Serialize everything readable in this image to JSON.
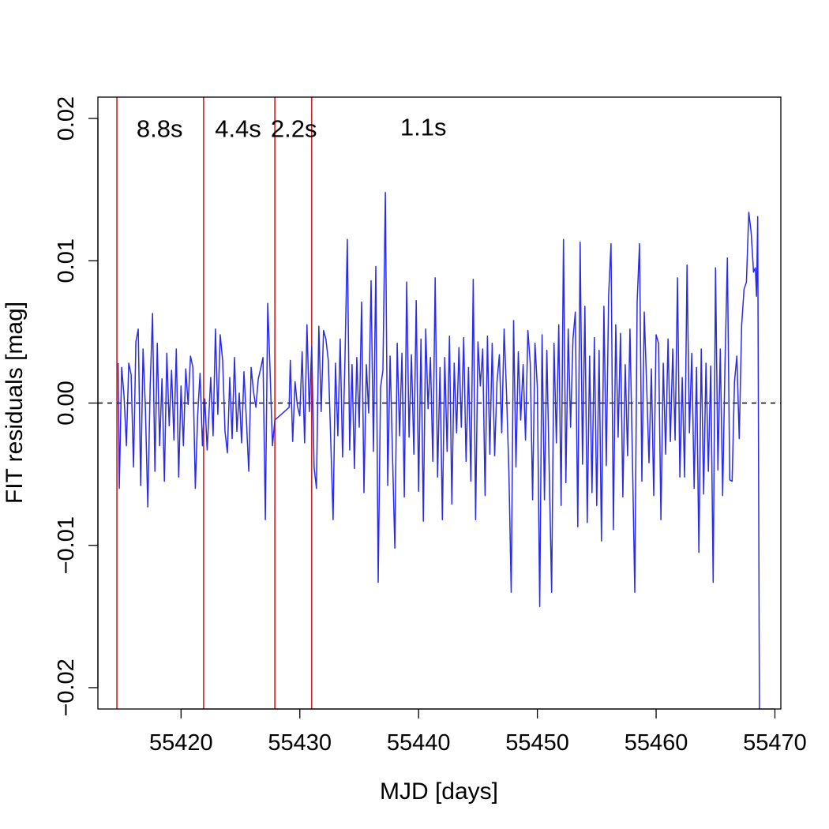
{
  "chart_data": {
    "type": "line",
    "title": "",
    "xlabel": "MJD [days]",
    "ylabel": "FIT residuals [mag]",
    "xlim": [
      55413,
      55470.5
    ],
    "ylim": [
      -0.0215,
      0.0215
    ],
    "x_ticks": [
      55420,
      55430,
      55440,
      55450,
      55460,
      55470
    ],
    "x_tick_labels": [
      "55420",
      "55430",
      "55440",
      "55450",
      "55460",
      "55470"
    ],
    "y_ticks": [
      -0.02,
      -0.01,
      0.0,
      0.01,
      0.02
    ],
    "y_tick_labels": [
      "−0.02",
      "−0.01",
      "0.00",
      "0.01",
      "0.02"
    ],
    "reference_line": {
      "y": 0.0,
      "style": "dashed",
      "color": "#000000"
    },
    "vertical_lines": {
      "color": "#cc2222",
      "x": [
        55414.6,
        55421.9,
        55427.9,
        55431.0
      ]
    },
    "segment_labels": [
      {
        "text": "8.8s",
        "x": 55418.2,
        "y": 0.0187
      },
      {
        "text": "4.4s",
        "x": 55424.8,
        "y": 0.0187
      },
      {
        "text": "2.2s",
        "x": 55429.5,
        "y": 0.0187
      },
      {
        "text": "1.1s",
        "x": 55440.4,
        "y": 0.0188
      }
    ],
    "grid": false,
    "series": [
      {
        "color": "#2a2ae8",
        "points": [
          [
            55414.7,
            0.0028
          ],
          [
            55414.8,
            -0.006
          ],
          [
            55415.0,
            0.0025
          ],
          [
            55415.2,
            0.0005
          ],
          [
            55415.4,
            -0.003
          ],
          [
            55415.6,
            0.0028
          ],
          [
            55415.8,
            0.002
          ],
          [
            55416.0,
            -0.0045
          ],
          [
            55416.2,
            0.0043
          ],
          [
            55416.4,
            0.0052
          ],
          [
            55416.6,
            -0.0058
          ],
          [
            55416.8,
            0.0038
          ],
          [
            55417.0,
            -0.0004
          ],
          [
            55417.2,
            -0.0073
          ],
          [
            55417.4,
            0.0012
          ],
          [
            55417.6,
            0.0063
          ],
          [
            55417.8,
            -0.0048
          ],
          [
            55418.0,
            0.0042
          ],
          [
            55418.2,
            -0.003
          ],
          [
            55418.4,
            0.0017
          ],
          [
            55418.6,
            -0.0055
          ],
          [
            55418.8,
            0.0035
          ],
          [
            55419.0,
            -0.0016
          ],
          [
            55419.2,
            0.0023
          ],
          [
            55419.4,
            -0.0026
          ],
          [
            55419.6,
            0.0038
          ],
          [
            55419.8,
            -0.0052
          ],
          [
            55420.0,
            0.0012
          ],
          [
            55420.2,
            -0.003
          ],
          [
            55420.4,
            0.0024
          ],
          [
            55420.6,
            -0.0001
          ],
          [
            55420.8,
            0.0033
          ],
          [
            55421.0,
            0.0025
          ],
          [
            55421.2,
            -0.006
          ],
          [
            55421.4,
            -0.0008
          ],
          [
            55421.6,
            0.0021
          ],
          [
            55421.8,
            -0.003
          ],
          [
            55422.0,
            0.0003
          ],
          [
            55422.2,
            -0.0033
          ],
          [
            55422.5,
            0.0018
          ],
          [
            55422.7,
            -0.0023
          ],
          [
            55422.9,
            0.0052
          ],
          [
            55423.1,
            -0.0008
          ],
          [
            55423.3,
            0.0048
          ],
          [
            55423.5,
            0.003
          ],
          [
            55423.7,
            -0.002
          ],
          [
            55423.9,
            -0.0035
          ],
          [
            55424.1,
            0.0018
          ],
          [
            55424.3,
            -0.0025
          ],
          [
            55424.5,
            0.0032
          ],
          [
            55424.7,
            -0.002
          ],
          [
            55424.9,
            0.0007
          ],
          [
            55425.1,
            -0.0028
          ],
          [
            55425.3,
            0.0022
          ],
          [
            55425.5,
            -0.0011
          ],
          [
            55425.7,
            -0.0048
          ],
          [
            55425.9,
            0.0025
          ],
          [
            55426.1,
            0.0008
          ],
          [
            55426.3,
            -0.0003
          ],
          [
            55426.5,
            0.0017
          ],
          [
            55426.7,
            0.0024
          ],
          [
            55426.9,
            0.0032
          ],
          [
            55427.1,
            -0.0082
          ],
          [
            55427.3,
            0.007
          ],
          [
            55427.5,
            0.0022
          ],
          [
            55427.7,
            -0.003
          ],
          [
            55427.9,
            -0.0012
          ],
          [
            55429.1,
            -0.0003
          ],
          [
            55429.2,
            0.003
          ],
          [
            55429.4,
            -0.0027
          ],
          [
            55429.6,
            0.0015
          ],
          [
            55429.8,
            -0.0002
          ],
          [
            55430.0,
            -0.0009
          ],
          [
            55430.2,
            0.0036
          ],
          [
            55430.4,
            -0.0028
          ],
          [
            55430.6,
            0.0055
          ],
          [
            55430.8,
            -0.0006
          ],
          [
            55431.0,
            0.004
          ],
          [
            55431.2,
            -0.0045
          ],
          [
            55431.4,
            -0.006
          ],
          [
            55431.6,
            0.0054
          ],
          [
            55431.8,
            -0.0006
          ],
          [
            55432.0,
            0.0051
          ],
          [
            55432.2,
            0.0045
          ],
          [
            55432.4,
            0.003
          ],
          [
            55432.6,
            -0.0026
          ],
          [
            55432.8,
            -0.0082
          ],
          [
            55433.0,
            0.0028
          ],
          [
            55433.2,
            -0.0023
          ],
          [
            55433.4,
            0.0045
          ],
          [
            55433.6,
            -0.0038
          ],
          [
            55433.8,
            0.003
          ],
          [
            55434.0,
            0.0115
          ],
          [
            55434.2,
            -0.0033
          ],
          [
            55434.4,
            0.0027
          ],
          [
            55434.6,
            -0.0046
          ],
          [
            55434.8,
            0.0032
          ],
          [
            55435.0,
            -0.0017
          ],
          [
            55435.2,
            0.0071
          ],
          [
            55435.4,
            -0.0063
          ],
          [
            55435.6,
            0.0027
          ],
          [
            55435.8,
            -0.0007
          ],
          [
            55436.0,
            0.0086
          ],
          [
            55436.2,
            -0.0034
          ],
          [
            55436.4,
            0.0096
          ],
          [
            55436.6,
            -0.0126
          ],
          [
            55436.8,
            0.0011
          ],
          [
            55437.0,
            0.0023
          ],
          [
            55437.2,
            0.0148
          ],
          [
            55437.4,
            -0.0058
          ],
          [
            55437.6,
            0.0033
          ],
          [
            55437.8,
            -0.0036
          ],
          [
            55438.0,
            -0.0102
          ],
          [
            55438.2,
            0.0042
          ],
          [
            55438.4,
            -0.0023
          ],
          [
            55438.6,
            0.0035
          ],
          [
            55438.8,
            -0.0066
          ],
          [
            55439.0,
            0.0085
          ],
          [
            55439.2,
            -0.0024
          ],
          [
            55439.4,
            0.0034
          ],
          [
            55439.6,
            -0.0036
          ],
          [
            55439.8,
            0.0072
          ],
          [
            55440.0,
            -0.0062
          ],
          [
            55440.2,
            0.0045
          ],
          [
            55440.4,
            -0.0083
          ],
          [
            55440.6,
            0.0052
          ],
          [
            55440.8,
            -0.0004
          ],
          [
            55441.0,
            0.0032
          ],
          [
            55441.2,
            -0.0041
          ],
          [
            55441.4,
            0.0088
          ],
          [
            55441.6,
            -0.0052
          ],
          [
            55441.8,
            0.0025
          ],
          [
            55442.0,
            -0.0082
          ],
          [
            55442.2,
            0.0032
          ],
          [
            55442.4,
            -0.0034
          ],
          [
            55442.6,
            0.0047
          ],
          [
            55442.8,
            -0.0071
          ],
          [
            55443.0,
            0.0028
          ],
          [
            55443.2,
            -0.0021
          ],
          [
            55443.4,
            0.0039
          ],
          [
            55443.6,
            -0.0017
          ],
          [
            55443.8,
            0.0046
          ],
          [
            55444.0,
            -0.0041
          ],
          [
            55444.2,
            0.0025
          ],
          [
            55444.4,
            -0.0055
          ],
          [
            55444.6,
            0.0087
          ],
          [
            55444.8,
            -0.0082
          ],
          [
            55445.0,
            0.0043
          ],
          [
            55445.2,
            0.0012
          ],
          [
            55445.4,
            0.0038
          ],
          [
            55445.6,
            -0.0065
          ],
          [
            55445.8,
            0.0047
          ],
          [
            55446.0,
            -0.0036
          ],
          [
            55446.2,
            0.0042
          ],
          [
            55446.4,
            -0.0037
          ],
          [
            55446.6,
            0.0015
          ],
          [
            55446.8,
            0.0034
          ],
          [
            55447.0,
            -0.0021
          ],
          [
            55447.2,
            0.0052
          ],
          [
            55447.4,
            0.0008
          ],
          [
            55447.6,
            -0.0047
          ],
          [
            55447.8,
            -0.0133
          ],
          [
            55448.0,
            0.0058
          ],
          [
            55448.2,
            -0.0045
          ],
          [
            55448.4,
            0.0036
          ],
          [
            55448.6,
            -0.0012
          ],
          [
            55448.8,
            0.0027
          ],
          [
            55449.0,
            -0.0026
          ],
          [
            55449.2,
            0.0051
          ],
          [
            55449.4,
            0.0028
          ],
          [
            55449.6,
            -0.0068
          ],
          [
            55449.8,
            0.0042
          ],
          [
            55450.0,
            0.0011
          ],
          [
            55450.2,
            -0.0143
          ],
          [
            55450.4,
            0.0048
          ],
          [
            55450.6,
            -0.0068
          ],
          [
            55450.8,
            0.0037
          ],
          [
            55451.0,
            -0.0049
          ],
          [
            55451.2,
            -0.0133
          ],
          [
            55451.4,
            0.0042
          ],
          [
            55451.6,
            -0.0028
          ],
          [
            55451.8,
            0.0055
          ],
          [
            55452.0,
            -0.0072
          ],
          [
            55452.2,
            0.0115
          ],
          [
            55452.4,
            -0.0056
          ],
          [
            55452.6,
            0.0052
          ],
          [
            55452.8,
            -0.0017
          ],
          [
            55453.0,
            0.0045
          ],
          [
            55453.2,
            0.0064
          ],
          [
            55453.4,
            -0.0087
          ],
          [
            55453.6,
            0.0113
          ],
          [
            55453.8,
            -0.0043
          ],
          [
            55454.0,
            0.0068
          ],
          [
            55454.2,
            -0.0084
          ],
          [
            55454.4,
            0.0033
          ],
          [
            55454.6,
            -0.0063
          ],
          [
            55454.8,
            0.0046
          ],
          [
            55455.0,
            -0.0072
          ],
          [
            55455.2,
            0.0037
          ],
          [
            55455.4,
            -0.0097
          ],
          [
            55455.6,
            0.0068
          ],
          [
            55455.8,
            -0.0044
          ],
          [
            55456.0,
            0.0076
          ],
          [
            55456.2,
            0.0112
          ],
          [
            55456.4,
            -0.0089
          ],
          [
            55456.6,
            0.0055
          ],
          [
            55456.8,
            -0.0024
          ],
          [
            55457.0,
            0.0049
          ],
          [
            55457.2,
            -0.0066
          ],
          [
            55457.4,
            0.0027
          ],
          [
            55457.6,
            -0.0037
          ],
          [
            55457.8,
            0.0052
          ],
          [
            55458.0,
            -0.0038
          ],
          [
            55458.2,
            -0.0133
          ],
          [
            55458.4,
            0.0071
          ],
          [
            55458.6,
            0.0112
          ],
          [
            55458.8,
            -0.0055
          ],
          [
            55459.0,
            0.0064
          ],
          [
            55459.2,
            0.0013
          ],
          [
            55459.4,
            -0.0042
          ],
          [
            55459.6,
            0.0024
          ],
          [
            55459.8,
            -0.0065
          ],
          [
            55460.0,
            0.0048
          ],
          [
            55460.2,
            0.0042
          ],
          [
            55460.4,
            -0.0082
          ],
          [
            55460.6,
            0.0028
          ],
          [
            55460.8,
            -0.0036
          ],
          [
            55461.0,
            0.0045
          ],
          [
            55461.2,
            -0.0027
          ],
          [
            55461.4,
            0.0038
          ],
          [
            55461.6,
            -0.0026
          ],
          [
            55461.8,
            0.0088
          ],
          [
            55462.0,
            -0.0052
          ],
          [
            55462.2,
            0.0018
          ],
          [
            55462.4,
            -0.0052
          ],
          [
            55462.6,
            0.0097
          ],
          [
            55462.8,
            -0.0021
          ],
          [
            55463.0,
            0.0035
          ],
          [
            55463.2,
            -0.006
          ],
          [
            55463.4,
            0.0025
          ],
          [
            55463.6,
            -0.0105
          ],
          [
            55463.8,
            0.0038
          ],
          [
            55464.0,
            -0.0064
          ],
          [
            55464.2,
            0.0028
          ],
          [
            55464.4,
            -0.0048
          ],
          [
            55464.6,
            0.0026
          ],
          [
            55464.8,
            -0.0126
          ],
          [
            55465.0,
            0.0095
          ],
          [
            55465.2,
            -0.0047
          ],
          [
            55465.4,
            0.0038
          ],
          [
            55465.6,
            -0.0065
          ],
          [
            55465.8,
            0.0028
          ],
          [
            55466.0,
            0.0102
          ],
          [
            55466.2,
            -0.0054
          ],
          [
            55466.4,
            -0.0055
          ],
          [
            55466.6,
            0.0015
          ],
          [
            55466.8,
            0.0033
          ],
          [
            55467.0,
            -0.0025
          ],
          [
            55467.2,
            0.0055
          ],
          [
            55467.4,
            0.008
          ],
          [
            55467.6,
            0.0085
          ],
          [
            55467.8,
            0.0134
          ],
          [
            55468.0,
            0.012
          ],
          [
            55468.2,
            0.0092
          ],
          [
            55468.35,
            0.0095
          ],
          [
            55468.45,
            0.0075
          ],
          [
            55468.55,
            0.0131
          ],
          [
            55468.7,
            -0.022
          ]
        ]
      }
    ]
  }
}
